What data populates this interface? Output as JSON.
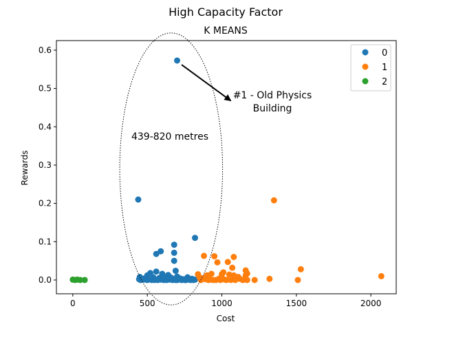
{
  "chart_data": {
    "type": "scatter",
    "title": "High Capacity Factor",
    "subtitle": "K MEANS",
    "xlabel": "Cost",
    "ylabel": "Rewards",
    "xlim": [
      -110,
      2170
    ],
    "ylim": [
      -0.036,
      0.625
    ],
    "xticks": [
      0,
      500,
      1000,
      1500,
      2000
    ],
    "yticks": [
      0.0,
      0.1,
      0.2,
      0.3,
      0.4,
      0.5,
      0.6
    ],
    "ytick_labels": [
      "0.0",
      "0.1",
      "0.2",
      "0.3",
      "0.4",
      "0.5",
      "0.6"
    ],
    "grid": false,
    "legend_position": "top-right",
    "series": [
      {
        "name": "0",
        "color": "#1f77b4",
        "points": [
          [
            700,
            0.573
          ],
          [
            439,
            0.21
          ],
          [
            820,
            0.11
          ],
          [
            680,
            0.092
          ],
          [
            590,
            0.075
          ],
          [
            560,
            0.068
          ],
          [
            680,
            0.071
          ],
          [
            680,
            0.05
          ],
          [
            690,
            0.024
          ],
          [
            560,
            0.022
          ],
          [
            520,
            0.018
          ],
          [
            600,
            0.016
          ],
          [
            640,
            0.013
          ],
          [
            500,
            0.012
          ],
          [
            700,
            0.009
          ],
          [
            450,
            0.008
          ],
          [
            540,
            0.007
          ],
          [
            770,
            0.007
          ],
          [
            660,
            0.006
          ],
          [
            580,
            0.005
          ],
          [
            620,
            0.005
          ],
          [
            480,
            0.004
          ],
          [
            720,
            0.004
          ],
          [
            800,
            0.003
          ],
          [
            445,
            0.002
          ],
          [
            470,
            0.001
          ],
          [
            490,
            0.001
          ],
          [
            510,
            0.001
          ],
          [
            530,
            0.0
          ],
          [
            550,
            0.0
          ],
          [
            570,
            0.0
          ],
          [
            590,
            0.001
          ],
          [
            610,
            0.0
          ],
          [
            630,
            0.0
          ],
          [
            650,
            0.001
          ],
          [
            670,
            0.0
          ],
          [
            690,
            0.0
          ],
          [
            710,
            0.001
          ],
          [
            730,
            0.0
          ],
          [
            750,
            0.0
          ],
          [
            760,
            0.0
          ],
          [
            780,
            0.001
          ],
          [
            790,
            0.0
          ],
          [
            810,
            0.0
          ],
          [
            820,
            0.001
          ],
          [
            455,
            0.0
          ],
          [
            500,
            0.0
          ],
          [
            620,
            0.001
          ],
          [
            700,
            0.0
          ],
          [
            740,
            0.002
          ]
        ]
      },
      {
        "name": "1",
        "color": "#ff7f0e",
        "points": [
          [
            1350,
            0.208
          ],
          [
            880,
            0.063
          ],
          [
            950,
            0.062
          ],
          [
            1080,
            0.06
          ],
          [
            1040,
            0.047
          ],
          [
            970,
            0.046
          ],
          [
            1530,
            0.028
          ],
          [
            1070,
            0.032
          ],
          [
            1160,
            0.025
          ],
          [
            2070,
            0.01
          ],
          [
            1320,
            0.003
          ],
          [
            1510,
            0.0
          ],
          [
            840,
            0.015
          ],
          [
            900,
            0.012
          ],
          [
            930,
            0.016
          ],
          [
            1000,
            0.015
          ],
          [
            1010,
            0.02
          ],
          [
            1050,
            0.014
          ],
          [
            1080,
            0.012
          ],
          [
            1160,
            0.012
          ],
          [
            1170,
            0.017
          ],
          [
            1110,
            0.008
          ],
          [
            850,
            0.007
          ],
          [
            870,
            0.004
          ],
          [
            890,
            0.002
          ],
          [
            910,
            0.0
          ],
          [
            920,
            0.001
          ],
          [
            940,
            0.0
          ],
          [
            960,
            0.0
          ],
          [
            980,
            0.003
          ],
          [
            990,
            0.0
          ],
          [
            1020,
            0.001
          ],
          [
            1030,
            0.0
          ],
          [
            1060,
            0.0
          ],
          [
            1090,
            0.0
          ],
          [
            1140,
            0.0
          ],
          [
            1150,
            0.001
          ],
          [
            1170,
            0.0
          ],
          [
            1220,
            0.0
          ],
          [
            860,
            0.0
          ],
          [
            1000,
            0.005
          ],
          [
            1120,
            0.003
          ]
        ]
      },
      {
        "name": "2",
        "color": "#2ca02c",
        "points": [
          [
            0,
            0.001
          ],
          [
            15,
            0.0
          ],
          [
            30,
            0.001
          ],
          [
            50,
            0.0
          ],
          [
            80,
            0.0
          ]
        ]
      }
    ],
    "annotations": [
      {
        "text_lines": [
          "#1 - Old Physics",
          "Building"
        ],
        "arrow_from": [
          730,
          0.562
        ],
        "arrow_to": [
          1060,
          0.468
        ]
      },
      {
        "text_lines": [
          "439-820 metres"
        ],
        "anchor": [
          660,
          0.36
        ]
      }
    ],
    "ellipse": {
      "center": [
        660,
        0.29
      ],
      "width_units": 690,
      "height_units": 0.71,
      "style": "dotted"
    }
  }
}
